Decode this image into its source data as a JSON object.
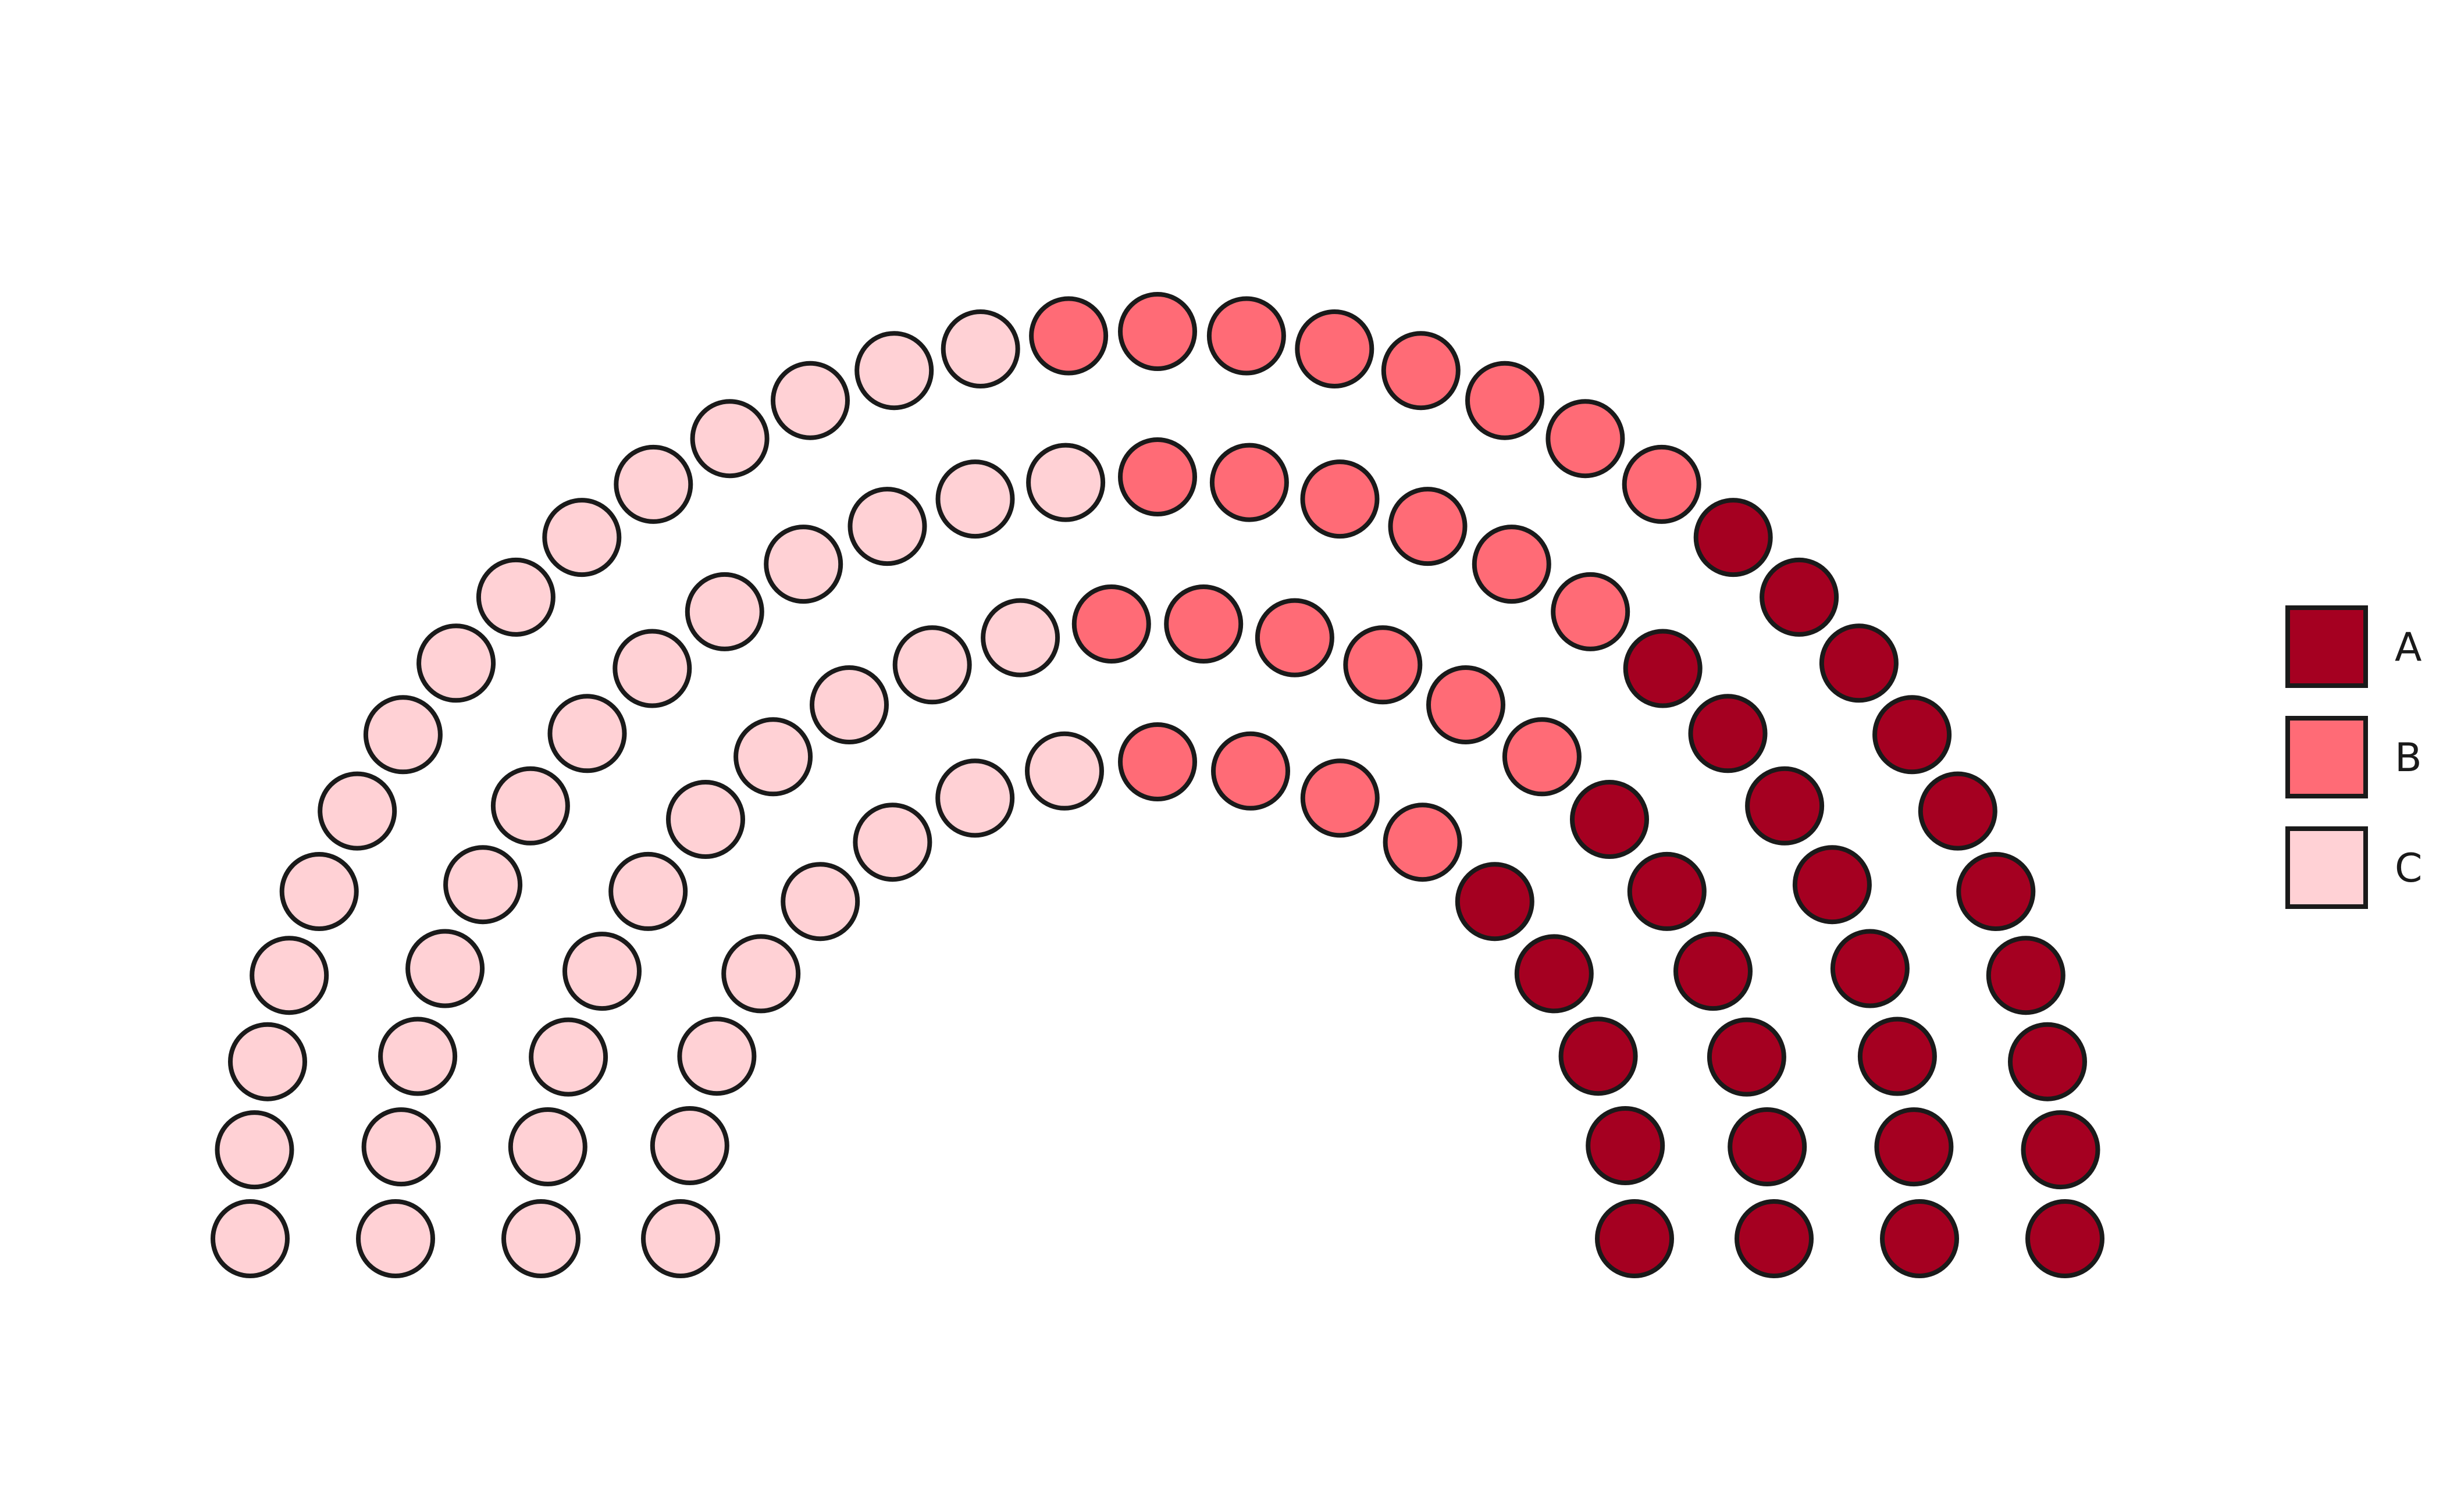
{
  "chart_data": {
    "type": "parliament",
    "title": "",
    "legend_position": "right",
    "parties": [
      {
        "name": "A",
        "seats": 29,
        "color": "#A50021"
      },
      {
        "name": "B",
        "seats": 24,
        "color": "#FF6B76"
      },
      {
        "name": "C",
        "seats": 46,
        "color": "#FFD1D5"
      }
    ],
    "total_seats": 99,
    "rows": 4
  }
}
